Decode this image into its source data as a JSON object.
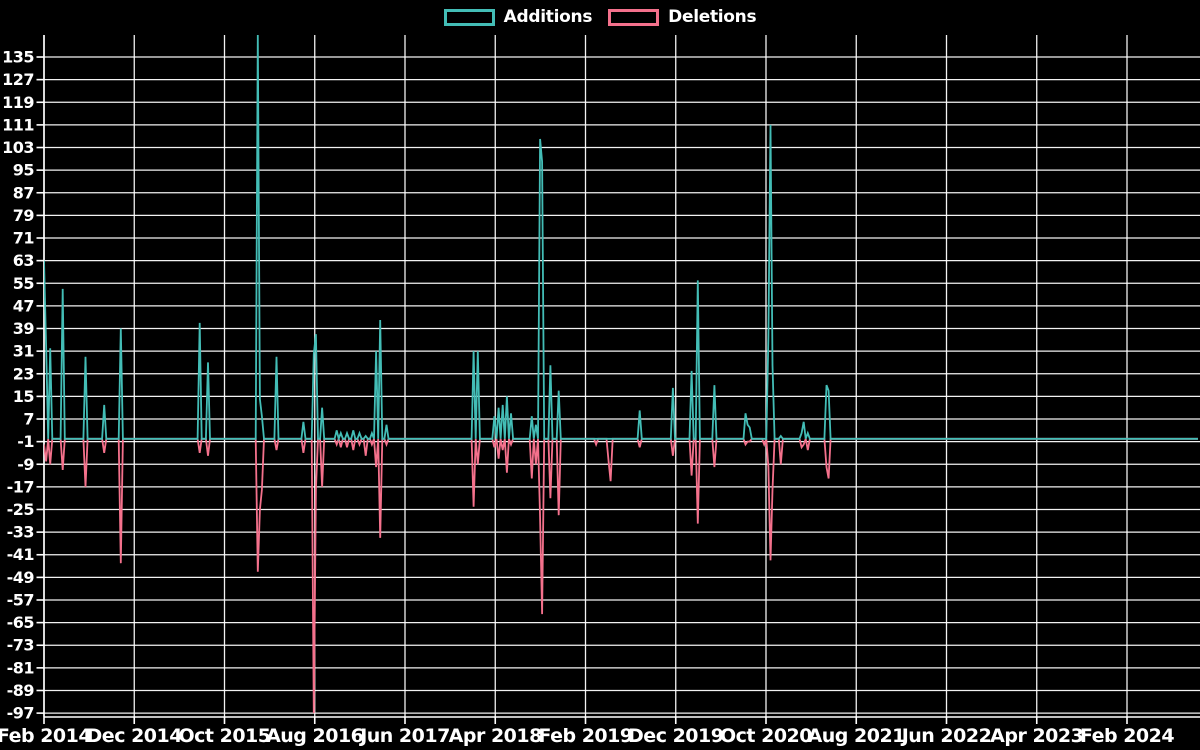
{
  "chart_data": {
    "type": "line",
    "title": "",
    "legend_position": "top-center",
    "grid": true,
    "background": "#000000",
    "text_color": "#ffffff",
    "series": [
      {
        "name": "Additions",
        "color": "#43bdb6"
      },
      {
        "name": "Deletions",
        "color": "#f4718c"
      }
    ],
    "x_ticks": [
      "Feb 2014",
      "Dec 2014",
      "Oct 2015",
      "Aug 2016",
      "Jun 2017",
      "Apr 2018",
      "Feb 2019",
      "Dec 2019",
      "Oct 2020",
      "Aug 2021",
      "Jun 2022",
      "Apr 2023",
      "Feb 2024"
    ],
    "y_ticks": [
      135,
      127,
      119,
      111,
      103,
      95,
      87,
      79,
      71,
      63,
      55,
      47,
      39,
      31,
      23,
      15,
      7,
      -1,
      -9,
      -17,
      -25,
      -33,
      -41,
      -49,
      -57,
      -65,
      -73,
      -81,
      -89,
      -97
    ],
    "ylim": [
      -98.5,
      143
    ],
    "baseline": 0,
    "weeks_total": 557,
    "x_unit": "weeks since Feb 2014",
    "spikes_format": [
      "week_index",
      "additions",
      "deletions"
    ],
    "spikes": [
      [
        0,
        63,
        -2
      ],
      [
        1,
        33,
        -8
      ],
      [
        3,
        32,
        -9
      ],
      [
        9,
        53,
        -11
      ],
      [
        20,
        29,
        -17
      ],
      [
        29,
        12,
        -5
      ],
      [
        37,
        39,
        -44
      ],
      [
        75,
        41,
        -5
      ],
      [
        79,
        27,
        -6
      ],
      [
        103,
        143,
        -47
      ],
      [
        104,
        14,
        -25
      ],
      [
        105,
        8,
        -18
      ],
      [
        112,
        29,
        -4
      ],
      [
        125,
        6,
        -5
      ],
      [
        130,
        30,
        -97
      ],
      [
        131,
        37,
        -18
      ],
      [
        134,
        11,
        -17
      ],
      [
        141,
        3,
        -2
      ],
      [
        143,
        2,
        -3
      ],
      [
        146,
        2,
        -3
      ],
      [
        149,
        3,
        -4
      ],
      [
        152,
        2,
        -2
      ],
      [
        155,
        1,
        -6
      ],
      [
        158,
        2,
        -2
      ],
      [
        160,
        31,
        -10
      ],
      [
        162,
        42,
        -35
      ],
      [
        165,
        5,
        -2
      ],
      [
        207,
        31,
        -24
      ],
      [
        209,
        31,
        -9
      ],
      [
        217,
        8,
        -3
      ],
      [
        219,
        11,
        -7
      ],
      [
        221,
        12,
        -4
      ],
      [
        223,
        15,
        -12
      ],
      [
        225,
        9,
        -2
      ],
      [
        235,
        8,
        -14
      ],
      [
        237,
        5,
        -9
      ],
      [
        239,
        106,
        -28
      ],
      [
        240,
        98,
        -62
      ],
      [
        244,
        26,
        -21
      ],
      [
        248,
        17,
        -27
      ],
      [
        266,
        0,
        -2
      ],
      [
        272,
        0,
        -8
      ],
      [
        273,
        0,
        -15
      ],
      [
        287,
        10,
        -3
      ],
      [
        303,
        18,
        -6
      ],
      [
        312,
        24,
        -13
      ],
      [
        315,
        56,
        -30
      ],
      [
        323,
        19,
        -10
      ],
      [
        338,
        9,
        -2
      ],
      [
        339,
        5,
        -1
      ],
      [
        340,
        4,
        -1
      ],
      [
        347,
        0,
        -2
      ],
      [
        349,
        36,
        -10
      ],
      [
        350,
        111,
        -43
      ],
      [
        351,
        26,
        -18
      ],
      [
        355,
        1,
        -9
      ],
      [
        365,
        2,
        -3
      ],
      [
        366,
        6,
        -2
      ],
      [
        368,
        2,
        -4
      ],
      [
        377,
        19,
        -10
      ],
      [
        378,
        17,
        -14
      ]
    ]
  }
}
